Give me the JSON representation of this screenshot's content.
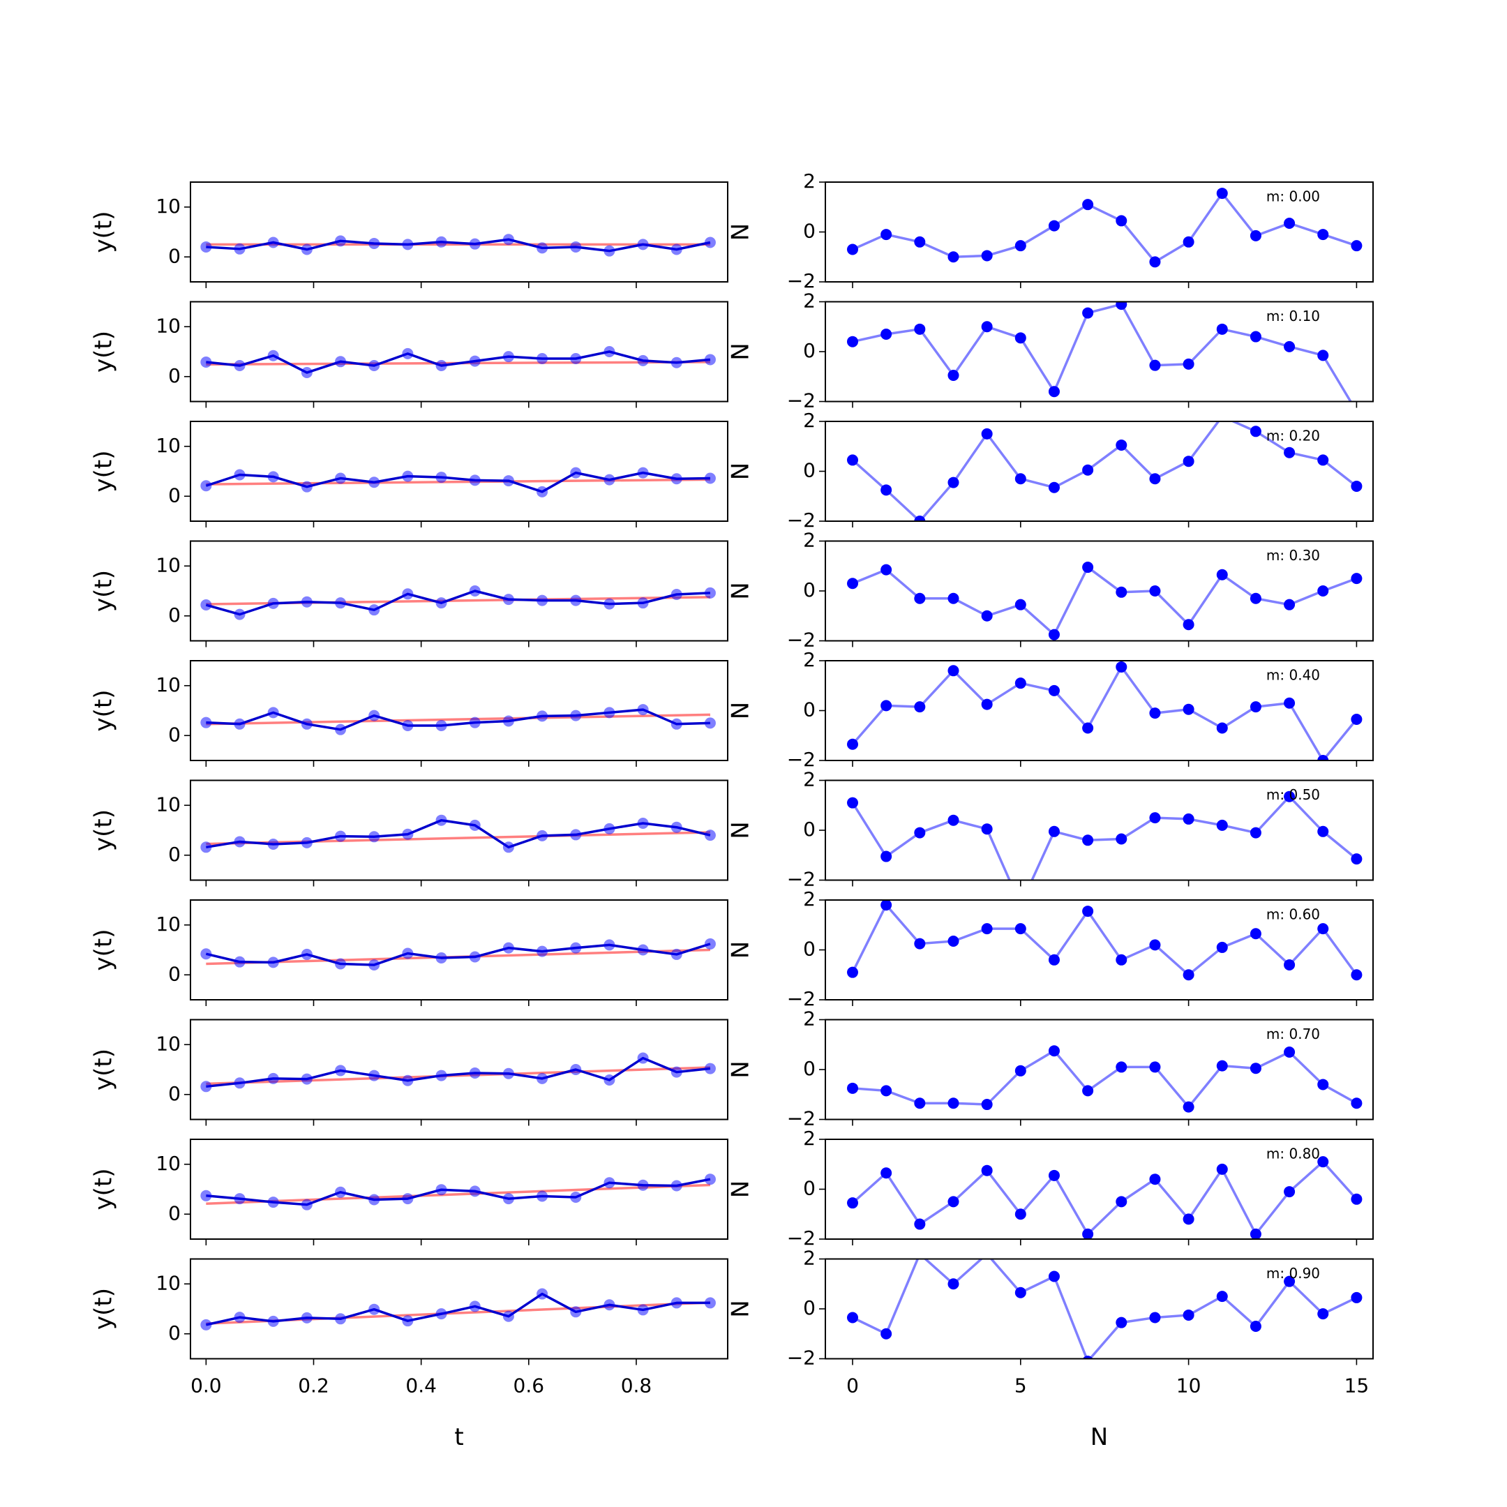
{
  "chart_data": [
    {
      "type": "line",
      "xlabel": "t",
      "ylabel": "y(t)",
      "x": [
        0,
        0.0625,
        0.125,
        0.1875,
        0.25,
        0.3125,
        0.375,
        0.4375,
        0.5,
        0.5625,
        0.625,
        0.6875,
        0.75,
        0.8125,
        0.875,
        0.9375
      ],
      "xlim": [
        -0.029,
        0.97
      ],
      "xticks": [
        {
          "value": 0,
          "label": "0.0"
        },
        0.2,
        0.4,
        0.6,
        0.8
      ],
      "ylim": [
        -5,
        15
      ],
      "yticks": [
        0,
        10
      ],
      "panels": [
        {
          "series": [
            {
              "color": "#ff0000",
              "line_opacity": 0.5,
              "markers": false,
              "x": [
                0,
                0.9375
              ],
              "values": [
                2.5,
                2.5
              ]
            },
            {
              "color": "#0000cd",
              "marker_color": "#0000ff",
              "line_opacity": 1,
              "marker_opacity": 0.5,
              "markers": true,
              "values": [
                2.0,
                1.6,
                2.9,
                1.5,
                3.2,
                2.7,
                2.5,
                3.0,
                2.6,
                3.5,
                1.8,
                2.0,
                1.2,
                2.5,
                1.5,
                2.9
              ]
            }
          ]
        },
        {
          "series": [
            {
              "color": "#ff0000",
              "line_opacity": 0.5,
              "markers": false,
              "x": [
                0,
                0.9375
              ],
              "values": [
                2.45,
                2.92
              ]
            },
            {
              "color": "#0000cd",
              "marker_color": "#0000ff",
              "line_opacity": 1,
              "marker_opacity": 0.5,
              "markers": true,
              "values": [
                2.9,
                2.2,
                4.2,
                0.8,
                3.0,
                2.2,
                4.6,
                2.2,
                3.1,
                4.0,
                3.6,
                3.6,
                5.0,
                3.2,
                2.8,
                3.4
              ]
            }
          ]
        },
        {
          "series": [
            {
              "color": "#ff0000",
              "line_opacity": 0.5,
              "markers": false,
              "x": [
                0,
                0.9375
              ],
              "values": [
                2.4,
                3.34
              ]
            },
            {
              "color": "#0000cd",
              "marker_color": "#0000ff",
              "line_opacity": 1,
              "marker_opacity": 0.5,
              "markers": true,
              "values": [
                2.1,
                4.3,
                3.9,
                1.9,
                3.6,
                2.8,
                4.0,
                3.8,
                3.2,
                3.1,
                0.9,
                4.7,
                3.3,
                4.7,
                3.5,
                3.6
              ]
            }
          ]
        },
        {
          "series": [
            {
              "color": "#ff0000",
              "line_opacity": 0.5,
              "markers": false,
              "x": [
                0,
                0.9375
              ],
              "values": [
                2.35,
                3.76
              ]
            },
            {
              "color": "#0000cd",
              "marker_color": "#0000ff",
              "line_opacity": 1,
              "marker_opacity": 0.5,
              "markers": true,
              "values": [
                2.2,
                0.3,
                2.5,
                2.8,
                2.6,
                1.2,
                4.4,
                2.6,
                5.0,
                3.3,
                3.1,
                3.1,
                2.4,
                2.6,
                4.3,
                4.6
              ]
            }
          ]
        },
        {
          "series": [
            {
              "color": "#ff0000",
              "line_opacity": 0.5,
              "markers": false,
              "x": [
                0,
                0.9375
              ],
              "values": [
                2.3,
                4.18
              ]
            },
            {
              "color": "#0000cd",
              "marker_color": "#0000ff",
              "line_opacity": 1,
              "marker_opacity": 0.5,
              "markers": true,
              "values": [
                2.6,
                2.3,
                4.6,
                2.3,
                1.2,
                4.0,
                2.0,
                2.0,
                2.6,
                2.9,
                3.9,
                4.0,
                4.6,
                5.2,
                2.3,
                2.5
              ]
            }
          ]
        },
        {
          "series": [
            {
              "color": "#ff0000",
              "line_opacity": 0.5,
              "markers": false,
              "x": [
                0,
                0.9375
              ],
              "values": [
                2.25,
                4.59
              ]
            },
            {
              "color": "#0000cd",
              "marker_color": "#0000ff",
              "line_opacity": 1,
              "marker_opacity": 0.5,
              "markers": true,
              "values": [
                1.6,
                2.7,
                2.2,
                2.5,
                3.8,
                3.7,
                4.2,
                7.0,
                6.0,
                1.6,
                3.9,
                4.1,
                5.3,
                6.4,
                5.6,
                4.0
              ]
            }
          ]
        },
        {
          "series": [
            {
              "color": "#ff0000",
              "line_opacity": 0.5,
              "markers": false,
              "x": [
                0,
                0.9375
              ],
              "values": [
                2.2,
                5.01
              ]
            },
            {
              "color": "#0000cd",
              "marker_color": "#0000ff",
              "line_opacity": 1,
              "marker_opacity": 0.5,
              "markers": true,
              "values": [
                4.2,
                2.6,
                2.5,
                4.1,
                2.2,
                2.0,
                4.3,
                3.4,
                3.6,
                5.4,
                4.7,
                5.4,
                6.0,
                5.0,
                4.1,
                6.2
              ]
            }
          ]
        },
        {
          "series": [
            {
              "color": "#ff0000",
              "line_opacity": 0.5,
              "markers": false,
              "x": [
                0,
                0.9375
              ],
              "values": [
                2.15,
                5.43
              ]
            },
            {
              "color": "#0000cd",
              "marker_color": "#0000ff",
              "line_opacity": 1,
              "marker_opacity": 0.5,
              "markers": true,
              "values": [
                1.6,
                2.3,
                3.2,
                3.1,
                4.8,
                3.8,
                2.8,
                3.8,
                4.3,
                4.2,
                3.2,
                5.0,
                2.9,
                7.3,
                4.5,
                5.2
              ]
            }
          ]
        },
        {
          "series": [
            {
              "color": "#ff0000",
              "line_opacity": 0.5,
              "markers": false,
              "x": [
                0,
                0.9375
              ],
              "values": [
                2.1,
                5.85
              ]
            },
            {
              "color": "#0000cd",
              "marker_color": "#0000ff",
              "line_opacity": 1,
              "marker_opacity": 0.5,
              "markers": true,
              "values": [
                3.7,
                3.1,
                2.4,
                1.9,
                4.4,
                2.9,
                3.1,
                4.9,
                4.6,
                3.1,
                3.6,
                3.4,
                6.3,
                5.8,
                5.7,
                7.0
              ]
            }
          ]
        },
        {
          "series": [
            {
              "color": "#ff0000",
              "line_opacity": 0.5,
              "markers": false,
              "x": [
                0,
                0.9375
              ],
              "values": [
                2.05,
                6.27
              ]
            },
            {
              "color": "#0000cd",
              "marker_color": "#0000ff",
              "line_opacity": 1,
              "marker_opacity": 0.5,
              "markers": true,
              "values": [
                1.8,
                3.3,
                2.5,
                3.2,
                3.0,
                4.9,
                2.6,
                4.0,
                5.5,
                3.5,
                8.0,
                4.4,
                5.8,
                4.8,
                6.2,
                6.2
              ]
            }
          ]
        }
      ]
    },
    {
      "type": "line",
      "xlabel": "N",
      "ylabel": "N",
      "x": [
        0,
        1,
        2,
        3,
        4,
        5,
        6,
        7,
        8,
        9,
        10,
        11,
        12,
        13,
        14,
        15
      ],
      "xlim": [
        -0.81,
        15.49
      ],
      "xticks": [
        0,
        5,
        10,
        15
      ],
      "ylim": [
        -2,
        2
      ],
      "yticks": [
        {
          "value": -2,
          "label": "−2"
        },
        0,
        2
      ],
      "panels": [
        {
          "annotation": "m: 0.00",
          "series": [
            {
              "color": "#0000ff",
              "marker_color": "#0000ff",
              "line_opacity": 0.5,
              "marker_opacity": 1,
              "markers": true,
              "values": [
                -0.7,
                -0.1,
                -0.4,
                -1.0,
                -0.95,
                -0.55,
                0.25,
                1.1,
                0.45,
                -1.2,
                -0.4,
                1.55,
                -0.15,
                0.35,
                -0.1,
                -0.55
              ]
            }
          ]
        },
        {
          "annotation": "m: 0.10",
          "series": [
            {
              "color": "#0000ff",
              "marker_color": "#0000ff",
              "line_opacity": 0.5,
              "marker_opacity": 1,
              "markers": true,
              "values": [
                0.4,
                0.7,
                0.9,
                -0.95,
                1.0,
                0.55,
                -1.6,
                1.55,
                1.9,
                -0.55,
                -0.5,
                0.9,
                0.6,
                0.2,
                -0.15,
                -2.4
              ]
            }
          ]
        },
        {
          "annotation": "m: 0.20",
          "series": [
            {
              "color": "#0000ff",
              "marker_color": "#0000ff",
              "line_opacity": 0.5,
              "marker_opacity": 1,
              "markers": true,
              "values": [
                0.45,
                -0.75,
                -2.0,
                -0.45,
                1.5,
                -0.3,
                -0.65,
                0.05,
                1.05,
                -0.3,
                0.4,
                2.2,
                1.6,
                0.75,
                0.45,
                -0.6
              ]
            }
          ]
        },
        {
          "annotation": "m: 0.30",
          "series": [
            {
              "color": "#0000ff",
              "marker_color": "#0000ff",
              "line_opacity": 0.5,
              "marker_opacity": 1,
              "markers": true,
              "values": [
                0.3,
                0.85,
                -0.3,
                -0.3,
                -1.0,
                -0.55,
                -1.75,
                0.95,
                -0.05,
                0,
                -1.35,
                0.65,
                -0.3,
                -0.55,
                0,
                0.5
              ]
            }
          ]
        },
        {
          "annotation": "m: 0.40",
          "series": [
            {
              "color": "#0000ff",
              "marker_color": "#0000ff",
              "line_opacity": 0.5,
              "marker_opacity": 1,
              "markers": true,
              "values": [
                -1.35,
                0.2,
                0.15,
                1.6,
                0.25,
                1.1,
                0.8,
                -0.7,
                1.75,
                -0.1,
                0.05,
                -0.7,
                0.15,
                0.3,
                -2.0,
                -0.35
              ]
            }
          ]
        },
        {
          "annotation": "m: 0.50",
          "series": [
            {
              "color": "#0000ff",
              "marker_color": "#0000ff",
              "line_opacity": 0.5,
              "marker_opacity": 1,
              "markers": true,
              "values": [
                1.1,
                -1.05,
                -0.1,
                0.4,
                0.05,
                -3.0,
                -0.05,
                -0.4,
                -0.35,
                0.5,
                0.45,
                0.2,
                -0.1,
                1.35,
                -0.05,
                -1.15
              ]
            }
          ]
        },
        {
          "annotation": "m: 0.60",
          "series": [
            {
              "color": "#0000ff",
              "marker_color": "#0000ff",
              "line_opacity": 0.5,
              "marker_opacity": 1,
              "markers": true,
              "values": [
                -0.9,
                1.8,
                0.25,
                0.35,
                0.85,
                0.85,
                -0.4,
                1.55,
                -0.4,
                0.2,
                -1.0,
                0.1,
                0.65,
                -0.6,
                0.85,
                -1.0
              ]
            }
          ]
        },
        {
          "annotation": "m: 0.70",
          "series": [
            {
              "color": "#0000ff",
              "marker_color": "#0000ff",
              "line_opacity": 0.5,
              "marker_opacity": 1,
              "markers": true,
              "values": [
                -0.75,
                -0.85,
                -1.35,
                -1.35,
                -1.4,
                -0.05,
                0.75,
                -0.85,
                0.1,
                0.1,
                -1.5,
                0.15,
                0.05,
                0.7,
                -0.6,
                -1.35
              ]
            }
          ]
        },
        {
          "annotation": "m: 0.80",
          "series": [
            {
              "color": "#0000ff",
              "marker_color": "#0000ff",
              "line_opacity": 0.5,
              "marker_opacity": 1,
              "markers": true,
              "values": [
                -0.55,
                0.65,
                -1.4,
                -0.5,
                0.75,
                -1.0,
                0.55,
                -1.8,
                -0.5,
                0.4,
                -1.2,
                0.8,
                -1.8,
                -0.1,
                1.1,
                -0.4
              ]
            }
          ]
        },
        {
          "annotation": "m: 0.90",
          "series": [
            {
              "color": "#0000ff",
              "marker_color": "#0000ff",
              "line_opacity": 0.5,
              "marker_opacity": 1,
              "markers": true,
              "values": [
                -0.35,
                -1.0,
                2.2,
                1.0,
                2.2,
                0.65,
                1.3,
                -2.1,
                -0.55,
                -0.35,
                -0.25,
                0.5,
                -0.7,
                1.1,
                -0.2,
                0.45
              ]
            }
          ]
        }
      ]
    }
  ]
}
